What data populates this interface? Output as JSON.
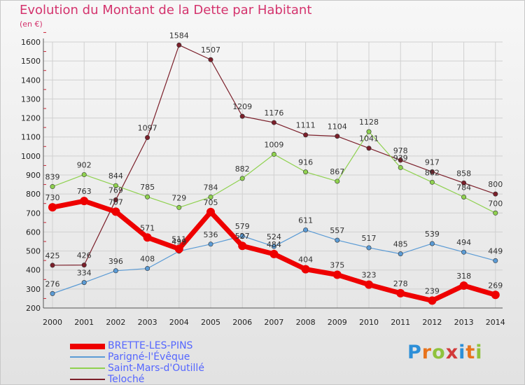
{
  "chart_data": {
    "type": "line",
    "title": "Evolution du Montant de la Dette par Habitant",
    "unit_label": "(en €)",
    "x": [
      "2000",
      "2001",
      "2002",
      "2003",
      "2004",
      "2005",
      "2006",
      "2007",
      "2008",
      "2009",
      "2010",
      "2011",
      "2012",
      "2013",
      "2014"
    ],
    "ylim": [
      200,
      1600
    ],
    "yticks": [
      200,
      300,
      400,
      500,
      600,
      700,
      800,
      900,
      1000,
      1100,
      1200,
      1300,
      1400,
      1500,
      1600
    ],
    "grid": true,
    "legend_position": "bottom-left",
    "series": [
      {
        "name": "BRETTE-LES-PINS",
        "color": "#ee0000",
        "values": [
          730,
          763,
          707,
          571,
          511,
          705,
          527,
          484,
          404,
          375,
          323,
          278,
          239,
          318,
          269
        ]
      },
      {
        "name": "Parigné-l'Évêque",
        "color": "#5b9bd5",
        "values": [
          276,
          334,
          396,
          408,
          499,
          536,
          579,
          524,
          611,
          557,
          517,
          485,
          539,
          494,
          449
        ]
      },
      {
        "name": "Saint-Mars-d'Outillé",
        "color": "#8fd14f",
        "values": [
          839,
          902,
          844,
          785,
          729,
          784,
          882,
          1009,
          916,
          867,
          1128,
          939,
          862,
          784,
          700
        ]
      },
      {
        "name": "Teloché",
        "color": "#7b1f2a",
        "values": [
          425,
          426,
          769,
          1097,
          1584,
          1507,
          1209,
          1176,
          1111,
          1104,
          1041,
          978,
          917,
          858,
          800
        ]
      }
    ]
  },
  "legend_colors": [
    "#ee0000",
    "#5b9bd5",
    "#8fd14f",
    "#7b1f2a"
  ],
  "legend_text_color": "#5566ff",
  "logo": {
    "text": "Proxiti",
    "letter_colors": [
      "#2d8fd8",
      "#e8731c",
      "#8fc23c",
      "#d23a3a",
      "#2d8fd8",
      "#e8731c",
      "#8fc23c"
    ]
  }
}
